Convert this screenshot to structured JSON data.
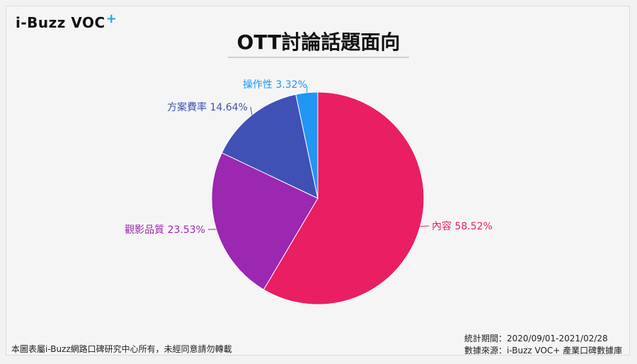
{
  "brand": {
    "logo_text": "i-Buzz VOC",
    "logo_plus": "+"
  },
  "chart_data": {
    "type": "pie",
    "title": "OTT討論話題面向",
    "slices": [
      {
        "name": "內容",
        "value": 58.52,
        "label": "內容 58.52%",
        "color": "#e91e63"
      },
      {
        "name": "觀影品質",
        "value": 23.53,
        "label": "觀影品質 23.53%",
        "color": "#9c27b0"
      },
      {
        "name": "方案費率",
        "value": 14.64,
        "label": "方案費率 14.64%",
        "color": "#3f51b5"
      },
      {
        "name": "操作性",
        "value": 3.32,
        "label": "操作性 3.32%",
        "color": "#2196f3"
      }
    ]
  },
  "footer": {
    "copyright": "本圖表屬i-Buzz網路口碑研究中心所有，未經同意請勿轉載",
    "period": "統計期間：2020/09/01-2021/02/28",
    "source": "數據來源：i-Buzz VOC+ 產業口碑數據庫"
  }
}
